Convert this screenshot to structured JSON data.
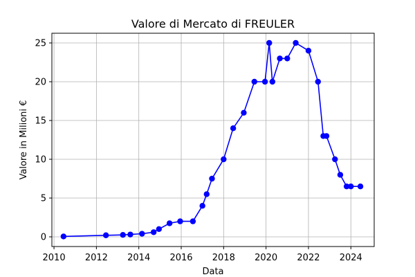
{
  "chart_data": {
    "type": "line",
    "title": "Valore di Mercato di FREULER",
    "xlabel": "Data",
    "ylabel": "Valore in Milioni €",
    "xlim": [
      2009.9,
      2025.1
    ],
    "ylim": [
      -1.25,
      26.25
    ],
    "xticks": [
      2010,
      2012,
      2014,
      2016,
      2018,
      2020,
      2022,
      2024
    ],
    "yticks": [
      0,
      5,
      10,
      15,
      20,
      25
    ],
    "grid": true,
    "series": [
      {
        "color": "#0000ff",
        "marker": "circle",
        "points": [
          {
            "x": 2010.45,
            "y": 0.05
          },
          {
            "x": 2012.45,
            "y": 0.2
          },
          {
            "x": 2013.25,
            "y": 0.25
          },
          {
            "x": 2013.6,
            "y": 0.3
          },
          {
            "x": 2014.15,
            "y": 0.4
          },
          {
            "x": 2014.7,
            "y": 0.6
          },
          {
            "x": 2014.95,
            "y": 1.0
          },
          {
            "x": 2015.45,
            "y": 1.75
          },
          {
            "x": 2015.95,
            "y": 2.0
          },
          {
            "x": 2016.55,
            "y": 2.0
          },
          {
            "x": 2017.0,
            "y": 4.0
          },
          {
            "x": 2017.2,
            "y": 5.5
          },
          {
            "x": 2017.45,
            "y": 7.5
          },
          {
            "x": 2018.0,
            "y": 10.0
          },
          {
            "x": 2018.45,
            "y": 14.0
          },
          {
            "x": 2018.95,
            "y": 16.0
          },
          {
            "x": 2019.45,
            "y": 20.0
          },
          {
            "x": 2019.95,
            "y": 20.0
          },
          {
            "x": 2020.15,
            "y": 25.0
          },
          {
            "x": 2020.3,
            "y": 20.0
          },
          {
            "x": 2020.65,
            "y": 23.0
          },
          {
            "x": 2021.0,
            "y": 23.0
          },
          {
            "x": 2021.4,
            "y": 25.0
          },
          {
            "x": 2022.0,
            "y": 24.0
          },
          {
            "x": 2022.45,
            "y": 20.0
          },
          {
            "x": 2022.7,
            "y": 13.0
          },
          {
            "x": 2022.85,
            "y": 13.0
          },
          {
            "x": 2023.25,
            "y": 10.0
          },
          {
            "x": 2023.5,
            "y": 8.0
          },
          {
            "x": 2023.8,
            "y": 6.5
          },
          {
            "x": 2024.0,
            "y": 6.5
          },
          {
            "x": 2024.45,
            "y": 6.5
          }
        ]
      }
    ]
  }
}
